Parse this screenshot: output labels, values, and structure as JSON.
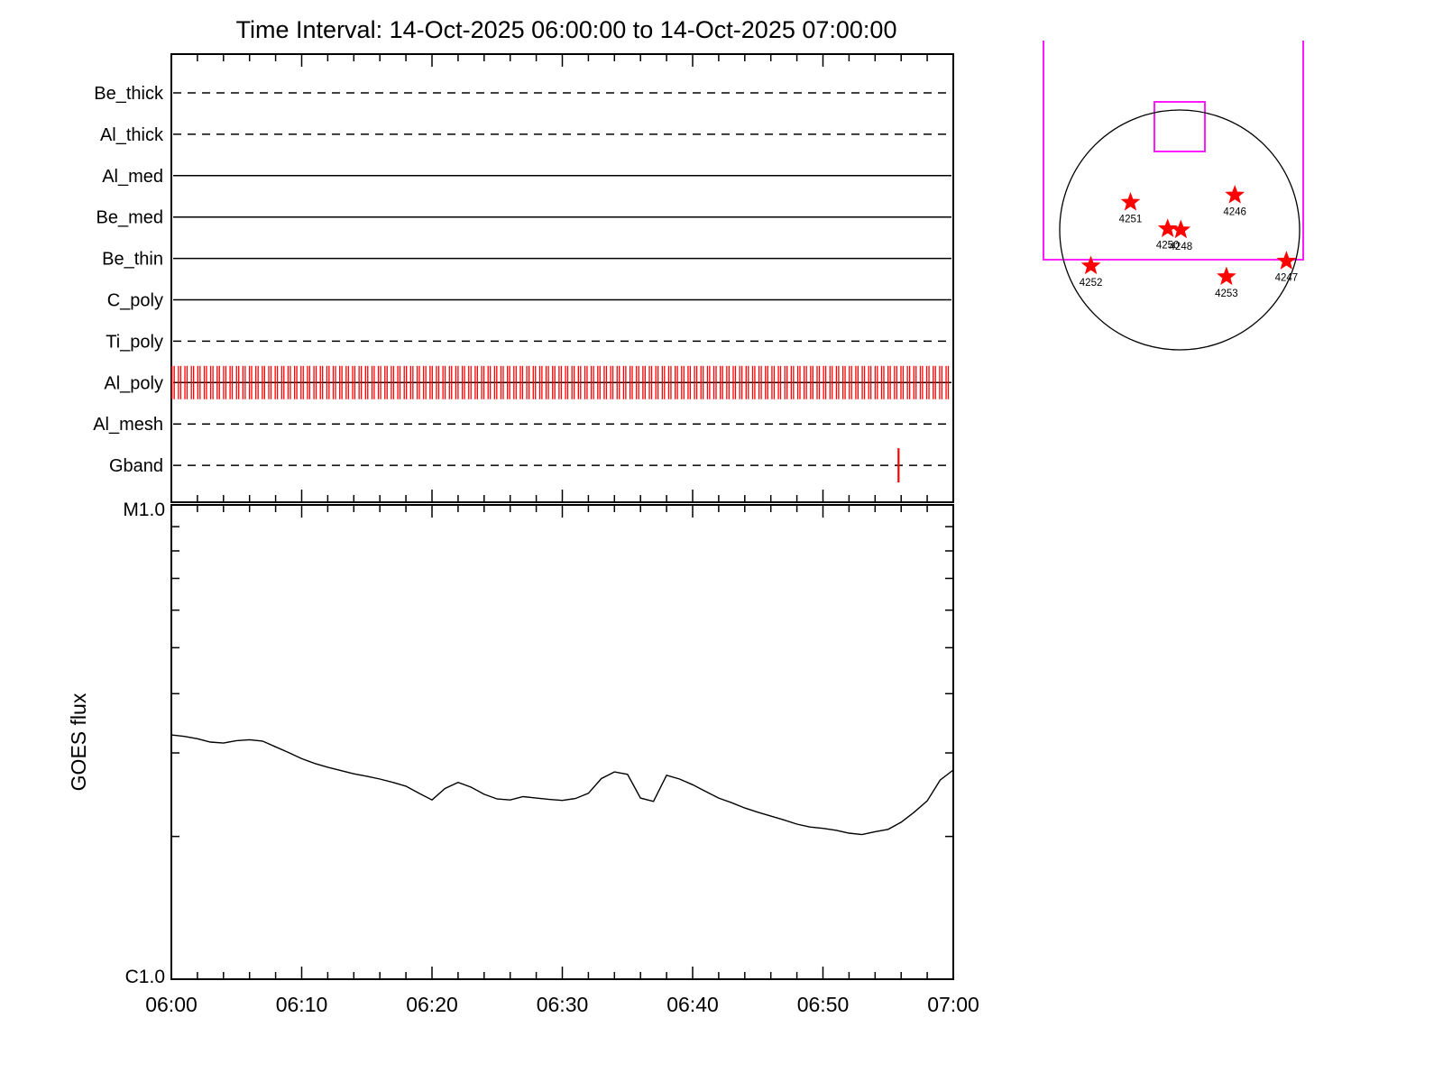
{
  "title": "Time Interval: 14-Oct-2025 06:00:00 to 14-Oct-2025 07:00:00",
  "colors": {
    "axis": "#000000",
    "exposure_tick": "#ff0000",
    "fov_box": "#ff00ff",
    "active_region_star": "#ff0000",
    "background": "#ffffff"
  },
  "chart_data": [
    {
      "type": "timeline",
      "name": "filter-exposure-timeline",
      "x_range_minutes": [
        0,
        60
      ],
      "x_start_time": "14-Oct-2025 06:00:00",
      "x_end_time": "14-Oct-2025 07:00:00",
      "filters": [
        {
          "label": "Be_thick",
          "line_style": "dashed"
        },
        {
          "label": "Al_thick",
          "line_style": "dashed"
        },
        {
          "label": "Al_med",
          "line_style": "solid"
        },
        {
          "label": "Be_med",
          "line_style": "solid"
        },
        {
          "label": "Be_thin",
          "line_style": "solid"
        },
        {
          "label": "C_poly",
          "line_style": "solid"
        },
        {
          "label": "Ti_poly",
          "line_style": "dashed"
        },
        {
          "label": "Al_poly",
          "line_style": "solid"
        },
        {
          "label": "Al_mesh",
          "line_style": "dashed"
        },
        {
          "label": "Gband",
          "line_style": "dashed"
        }
      ],
      "al_poly_exposures": {
        "pattern": "dense paired red ticks across full hour",
        "start_min": 0.05,
        "pair_interval_min": 0.495,
        "pair_offset_min": 0.17,
        "pair_count": 121
      },
      "gband_exposures_min": [
        55.8
      ]
    },
    {
      "type": "line",
      "name": "goes-flux",
      "ylabel": "GOES flux",
      "y_axis": {
        "scale": "log",
        "top_label": "M1.0",
        "bottom_label": "C1.0"
      },
      "x_tick_labels": [
        "06:00",
        "06:10",
        "06:20",
        "06:30",
        "06:40",
        "06:50",
        "07:00"
      ],
      "x_minutes": [
        0,
        1,
        2,
        3,
        4,
        5,
        6,
        7,
        8,
        9,
        10,
        11,
        12,
        13,
        14,
        15,
        16,
        17,
        18,
        19,
        20,
        21,
        22,
        23,
        24,
        25,
        26,
        27,
        28,
        29,
        30,
        31,
        32,
        33,
        34,
        35,
        36,
        37,
        38,
        39,
        40,
        41,
        42,
        43,
        44,
        45,
        46,
        47,
        48,
        49,
        50,
        51,
        52,
        53,
        54,
        55,
        56,
        57,
        58,
        59,
        60
      ],
      "y_frac_of_decade": [
        0.515,
        0.512,
        0.507,
        0.5,
        0.498,
        0.503,
        0.505,
        0.502,
        0.49,
        0.478,
        0.465,
        0.455,
        0.447,
        0.44,
        0.433,
        0.428,
        0.422,
        0.415,
        0.407,
        0.392,
        0.378,
        0.402,
        0.415,
        0.405,
        0.39,
        0.38,
        0.378,
        0.385,
        0.382,
        0.379,
        0.377,
        0.381,
        0.392,
        0.423,
        0.437,
        0.432,
        0.382,
        0.375,
        0.43,
        0.422,
        0.41,
        0.396,
        0.382,
        0.372,
        0.361,
        0.352,
        0.344,
        0.336,
        0.327,
        0.321,
        0.318,
        0.314,
        0.308,
        0.305,
        0.311,
        0.316,
        0.331,
        0.352,
        0.376,
        0.42,
        0.441
      ],
      "y_frac_note": "fraction of log decade above C1.0 (C1.0=0, M1.0=1)"
    },
    {
      "type": "scatter",
      "name": "solar-disk-active-regions",
      "position_units": "solar radii from disk center, x right, y down",
      "active_regions": [
        {
          "label": "4251",
          "x": -0.41,
          "y": -0.23
        },
        {
          "label": "4246",
          "x": 0.46,
          "y": -0.29
        },
        {
          "label": "4250",
          "x": -0.1,
          "y": -0.01
        },
        {
          "label": "4248",
          "x": 0.01,
          "y": 0.0
        },
        {
          "label": "4252",
          "x": -0.74,
          "y": 0.3
        },
        {
          "label": "4253",
          "x": 0.39,
          "y": 0.39
        },
        {
          "label": "4247",
          "x": 0.89,
          "y": 0.26
        }
      ]
    }
  ]
}
